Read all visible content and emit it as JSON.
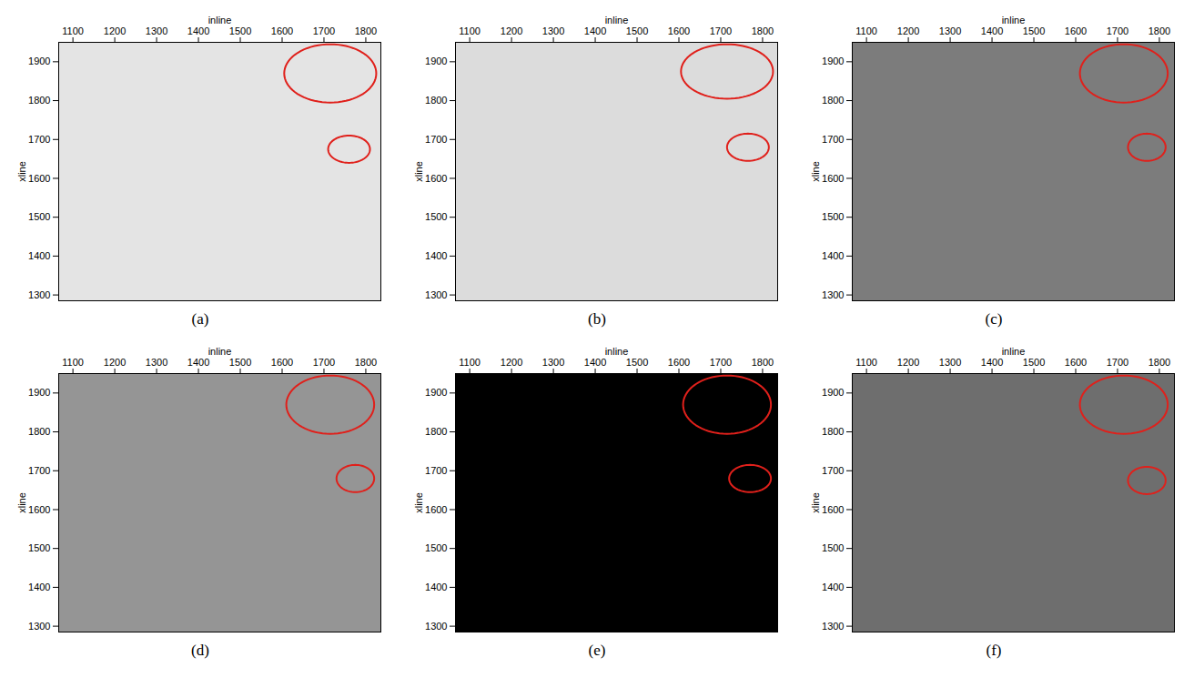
{
  "chart_data": [
    {
      "type": "image",
      "title": "(a)",
      "xlabel": "inline",
      "ylabel": "xline",
      "color": "#e4e4e4",
      "xlim": [
        1066,
        1836
      ],
      "xticks": [
        1100,
        1200,
        1300,
        1400,
        1500,
        1600,
        1700,
        1800
      ],
      "ylim": [
        1285,
        1950
      ],
      "yticks": [
        1300,
        1400,
        1500,
        1600,
        1700,
        1800,
        1900
      ],
      "ellipses": [
        {
          "cx": 1715,
          "cy": 1870,
          "rx": 110,
          "ry": 75
        },
        {
          "cx": 1760,
          "cy": 1675,
          "rx": 50,
          "ry": 35
        }
      ]
    },
    {
      "type": "image",
      "title": "(b)",
      "xlabel": "inline",
      "ylabel": "xline",
      "color": "#dcdcdc",
      "xlim": [
        1066,
        1836
      ],
      "xticks": [
        1100,
        1200,
        1300,
        1400,
        1500,
        1600,
        1700,
        1800
      ],
      "ylim": [
        1285,
        1950
      ],
      "yticks": [
        1300,
        1400,
        1500,
        1600,
        1700,
        1800,
        1900
      ],
      "ellipses": [
        {
          "cx": 1715,
          "cy": 1875,
          "rx": 110,
          "ry": 70
        },
        {
          "cx": 1765,
          "cy": 1680,
          "rx": 50,
          "ry": 35
        }
      ]
    },
    {
      "type": "image",
      "title": "(c)",
      "xlabel": "inline",
      "ylabel": "xline",
      "color": "#7c7c7c",
      "xlim": [
        1066,
        1836
      ],
      "xticks": [
        1100,
        1200,
        1300,
        1400,
        1500,
        1600,
        1700,
        1800
      ],
      "ylim": [
        1285,
        1950
      ],
      "yticks": [
        1300,
        1400,
        1500,
        1600,
        1700,
        1800,
        1900
      ],
      "ellipses": [
        {
          "cx": 1715,
          "cy": 1870,
          "rx": 105,
          "ry": 75
        },
        {
          "cx": 1770,
          "cy": 1680,
          "rx": 45,
          "ry": 35
        }
      ]
    },
    {
      "type": "image",
      "title": "(d)",
      "xlabel": "inline",
      "ylabel": "xline",
      "color": "#959595",
      "xlim": [
        1066,
        1836
      ],
      "xticks": [
        1100,
        1200,
        1300,
        1400,
        1500,
        1600,
        1700,
        1800
      ],
      "ylim": [
        1285,
        1950
      ],
      "yticks": [
        1300,
        1400,
        1500,
        1600,
        1700,
        1800,
        1900
      ],
      "ellipses": [
        {
          "cx": 1715,
          "cy": 1870,
          "rx": 105,
          "ry": 75
        },
        {
          "cx": 1775,
          "cy": 1680,
          "rx": 45,
          "ry": 35
        }
      ]
    },
    {
      "type": "image",
      "title": "(e)",
      "xlabel": "inline",
      "ylabel": "xline",
      "color": "#000000",
      "xlim": [
        1066,
        1836
      ],
      "xticks": [
        1100,
        1200,
        1300,
        1400,
        1500,
        1600,
        1700,
        1800
      ],
      "ylim": [
        1285,
        1950
      ],
      "yticks": [
        1300,
        1400,
        1500,
        1600,
        1700,
        1800,
        1900
      ],
      "ellipses": [
        {
          "cx": 1715,
          "cy": 1870,
          "rx": 105,
          "ry": 75
        },
        {
          "cx": 1770,
          "cy": 1680,
          "rx": 50,
          "ry": 35
        }
      ]
    },
    {
      "type": "image",
      "title": "(f)",
      "xlabel": "inline",
      "ylabel": "xline",
      "color": "#6e6e6e",
      "xlim": [
        1066,
        1836
      ],
      "xticks": [
        1100,
        1200,
        1300,
        1400,
        1500,
        1600,
        1700,
        1800
      ],
      "ylim": [
        1285,
        1950
      ],
      "yticks": [
        1300,
        1400,
        1500,
        1600,
        1700,
        1800,
        1900
      ],
      "ellipses": [
        {
          "cx": 1715,
          "cy": 1870,
          "rx": 105,
          "ry": 75
        },
        {
          "cx": 1770,
          "cy": 1675,
          "rx": 45,
          "ry": 35
        }
      ]
    }
  ]
}
